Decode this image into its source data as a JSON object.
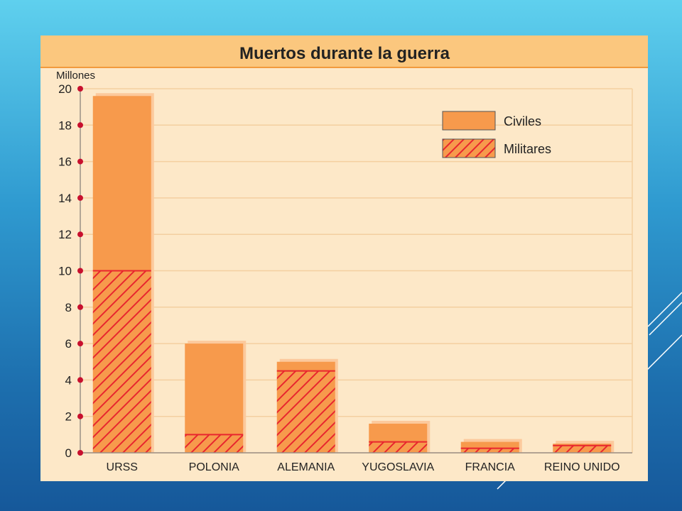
{
  "colors": {
    "panel_bg": "#fde8c8",
    "header_bg": "#fbc77e",
    "header_rule": "#f29a3c",
    "bar_fill": "#f79a4c",
    "bar_shadow": "#fcc99c",
    "hatch": "#e8262e",
    "axis_dot": "#c8102e",
    "grid": "#f4cfa0",
    "text": "#222222",
    "slide_lines": "#ffffff"
  },
  "chart_data": {
    "type": "bar",
    "stacked": true,
    "title": "Muertos durante la guerra",
    "ylabel": "Millones",
    "xlabel": "",
    "ylim": [
      0,
      20
    ],
    "yticks": [
      0,
      2,
      4,
      6,
      8,
      10,
      12,
      14,
      16,
      18,
      20
    ],
    "grid": true,
    "legend_position": "top-right",
    "categories": [
      "URSS",
      "POLONIA",
      "ALEMANIA",
      "YUGOSLAVIA",
      "FRANCIA",
      "REINO UNIDO"
    ],
    "series": [
      {
        "name": "Militares",
        "pattern": "hatch",
        "values": [
          10,
          1,
          4.5,
          0.6,
          0.25,
          0.4
        ]
      },
      {
        "name": "Civiles",
        "pattern": "solid",
        "values": [
          9.6,
          5,
          0.5,
          1,
          0.35,
          0.1
        ]
      }
    ]
  }
}
